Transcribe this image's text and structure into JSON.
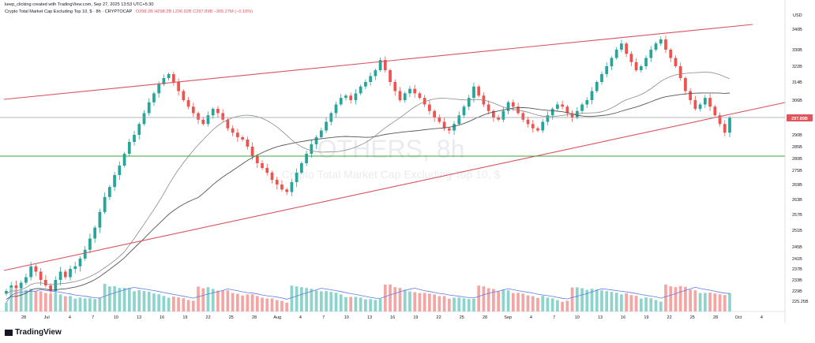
{
  "header": {
    "attribution": "keep_clicking created with TradingView.com, Sep 27, 2025 13:53 UTC+5:30",
    "symbol": "Crypto Total Market Cap Excluding Top 10, $ · 8h · CRYPTOCAP",
    "ohlc": "O298.2B  H298.2B  L296.92B  C297.89B  −305.27M (−0.10%)"
  },
  "watermark": {
    "ticker": "OTHERS, 8h",
    "name": "Crypto Total Market Cap Excluding Top 10, $"
  },
  "branding": {
    "text": "TradingView"
  },
  "colors": {
    "up": "#26a69a",
    "down": "#ef5350",
    "trend": "#d9535d",
    "support": "#3ba33b",
    "ma": "#555555",
    "volume_ma": "#5b7ce8",
    "price_tag": "#e0545b"
  },
  "chart_data": {
    "type": "candlestick",
    "timeframe": "8h",
    "currency_label": "USD",
    "y_axis_ticks": [
      "340B",
      "330B",
      "322B",
      "314B",
      "306B",
      "290B",
      "285B",
      "280B",
      "275B",
      "269B",
      "263B",
      "257B",
      "251B",
      "245B",
      "241B",
      "237B",
      "233B",
      "229B",
      "225.25B"
    ],
    "last_price_label": "297.89B",
    "x_axis_ticks": [
      "28",
      "Jul",
      "4",
      "7",
      "10",
      "13",
      "16",
      "19",
      "22",
      "25",
      "28",
      "Aug",
      "4",
      "7",
      "10",
      "13",
      "16",
      "19",
      "22",
      "25",
      "28",
      "Sep",
      "4",
      "7",
      "10",
      "13",
      "16",
      "19",
      "22",
      "25",
      "28",
      "Oct",
      "4"
    ],
    "close_series": [
      229,
      231,
      230,
      232,
      234,
      238,
      236,
      233,
      231,
      229,
      233,
      236,
      234,
      237,
      238,
      241,
      244,
      248,
      252,
      258,
      264,
      268,
      273,
      277,
      282,
      287,
      290,
      295,
      300,
      305,
      309,
      313,
      316,
      318,
      314,
      310,
      306,
      303,
      300,
      297,
      295,
      299,
      302,
      300,
      297,
      293,
      291,
      289,
      288,
      285,
      281,
      278,
      276,
      274,
      271,
      269,
      267,
      266,
      270,
      274,
      278,
      282,
      286,
      289,
      292,
      296,
      300,
      304,
      307,
      308,
      306,
      309,
      312,
      314,
      317,
      320,
      325,
      320,
      314,
      310,
      306,
      309,
      311,
      309,
      307,
      304,
      301,
      298,
      296,
      293,
      292,
      295,
      299,
      303,
      307,
      312,
      308,
      304,
      301,
      298,
      297,
      301,
      305,
      303,
      300,
      297,
      295,
      293,
      292,
      296,
      299,
      302,
      304,
      303,
      300,
      298,
      301,
      304,
      306,
      310,
      314,
      318,
      322,
      326,
      330,
      333,
      328,
      324,
      320,
      322,
      326,
      330,
      333,
      335,
      330,
      326,
      322,
      316,
      310,
      306,
      302,
      304,
      307,
      303,
      299,
      295,
      291,
      297.89
    ],
    "reference_lines": [
      {
        "name": "upper-channel",
        "from": [
          "Jun 25",
          305
        ],
        "to": [
          "Sep 28",
          341
        ]
      },
      {
        "name": "lower-trendline",
        "from": [
          "Jul 1",
          245
        ],
        "to": [
          "Sep 28",
          304
        ]
      },
      {
        "name": "horizontal-support",
        "value": 281
      },
      {
        "name": "horizontal-resistance",
        "value": 300
      }
    ],
    "volume": {
      "shown": true,
      "has_moving_average": true
    },
    "grid": false
  }
}
